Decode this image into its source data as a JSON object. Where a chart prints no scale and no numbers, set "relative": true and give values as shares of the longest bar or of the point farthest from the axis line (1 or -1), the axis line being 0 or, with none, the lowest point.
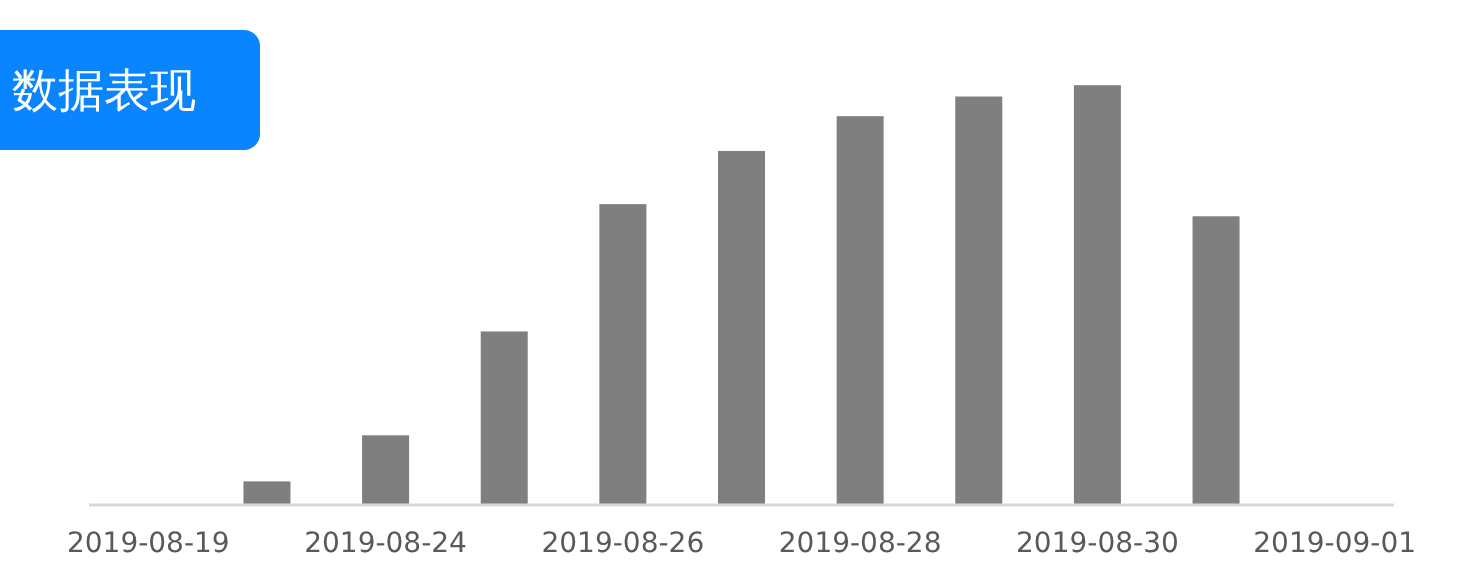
{
  "chart_data": {
    "type": "bar",
    "title": "数据表现",
    "relative": true,
    "categories": [
      "2019-08-19",
      null,
      "2019-08-24",
      null,
      "2019-08-26",
      null,
      "2019-08-28",
      null,
      "2019-08-30",
      null,
      "2019-09-01"
    ],
    "values": [
      0,
      0.054,
      0.164,
      0.412,
      0.716,
      0.843,
      0.926,
      0.973,
      1,
      0.687,
      0
    ],
    "color": "#7f7f7f"
  }
}
